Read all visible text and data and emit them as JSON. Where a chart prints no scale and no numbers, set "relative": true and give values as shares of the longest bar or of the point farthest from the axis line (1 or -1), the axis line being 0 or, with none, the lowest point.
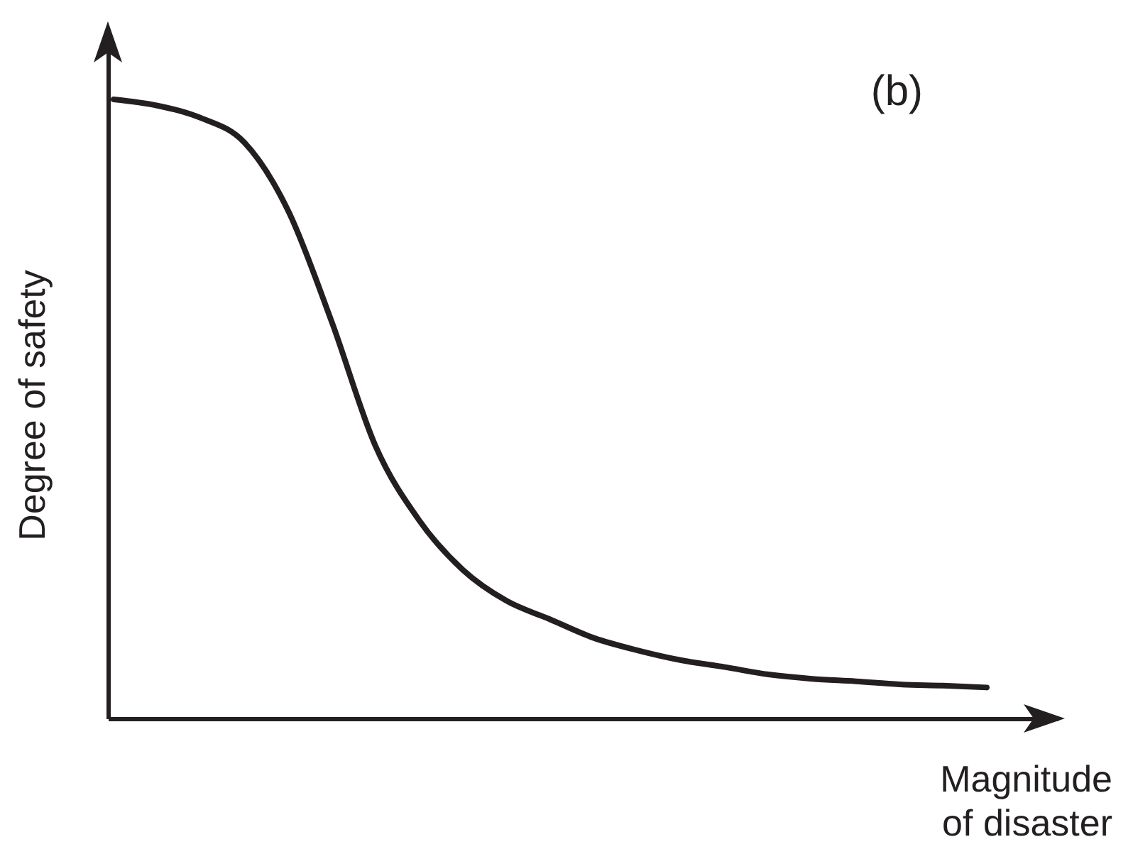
{
  "chart_data": {
    "type": "line",
    "title": "(b)",
    "xlabel": "Magnitude of disaster",
    "ylabel": "Degree of safety",
    "relative": true,
    "categories": [
      null,
      null,
      null,
      null,
      null,
      null,
      null,
      null,
      null,
      null,
      null,
      null,
      null,
      null,
      null,
      null,
      null,
      null,
      null,
      null,
      null
    ],
    "series": [
      {
        "color": "#231f20",
        "values": [
          1.0,
          0.99,
          0.97,
          0.93,
          0.82,
          0.64,
          0.44,
          0.32,
          0.24,
          0.19,
          0.16,
          0.13,
          0.11,
          0.094,
          0.083,
          0.071,
          0.064,
          0.06,
          0.055,
          0.053,
          0.05
        ]
      }
    ],
    "marker": "none",
    "line_style": "solid"
  }
}
